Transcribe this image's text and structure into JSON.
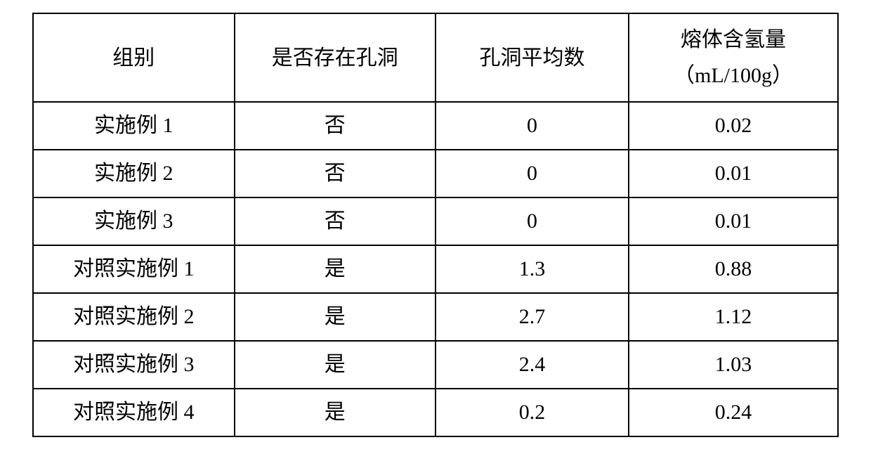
{
  "table": {
    "header": {
      "group": "组别",
      "has_holes": "是否存在孔洞",
      "avg_holes": "孔洞平均数",
      "hydrogen_top": "熔体含氢量",
      "hydrogen_bottom": "（mL/100g）"
    },
    "rows": [
      {
        "group": "实施例 1",
        "has_holes": "否",
        "avg_holes": "0",
        "hydrogen": "0.02"
      },
      {
        "group": "实施例 2",
        "has_holes": "否",
        "avg_holes": "0",
        "hydrogen": "0.01"
      },
      {
        "group": "实施例 3",
        "has_holes": "否",
        "avg_holes": "0",
        "hydrogen": "0.01"
      },
      {
        "group": "对照实施例 1",
        "has_holes": "是",
        "avg_holes": "1.3",
        "hydrogen": "0.88"
      },
      {
        "group": "对照实施例 2",
        "has_holes": "是",
        "avg_holes": "2.7",
        "hydrogen": "1.12"
      },
      {
        "group": "对照实施例 3",
        "has_holes": "是",
        "avg_holes": "2.4",
        "hydrogen": "1.03"
      },
      {
        "group": "对照实施例 4",
        "has_holes": "是",
        "avg_holes": "0.2",
        "hydrogen": "0.24"
      }
    ],
    "col_widths_pct": [
      25,
      25,
      24,
      26
    ],
    "colors": {
      "border": "#000000",
      "background": "#ffffff",
      "text": "#000000"
    },
    "font": {
      "family": "SimSun",
      "header_size_pt": 22,
      "body_size_pt": 22
    }
  }
}
